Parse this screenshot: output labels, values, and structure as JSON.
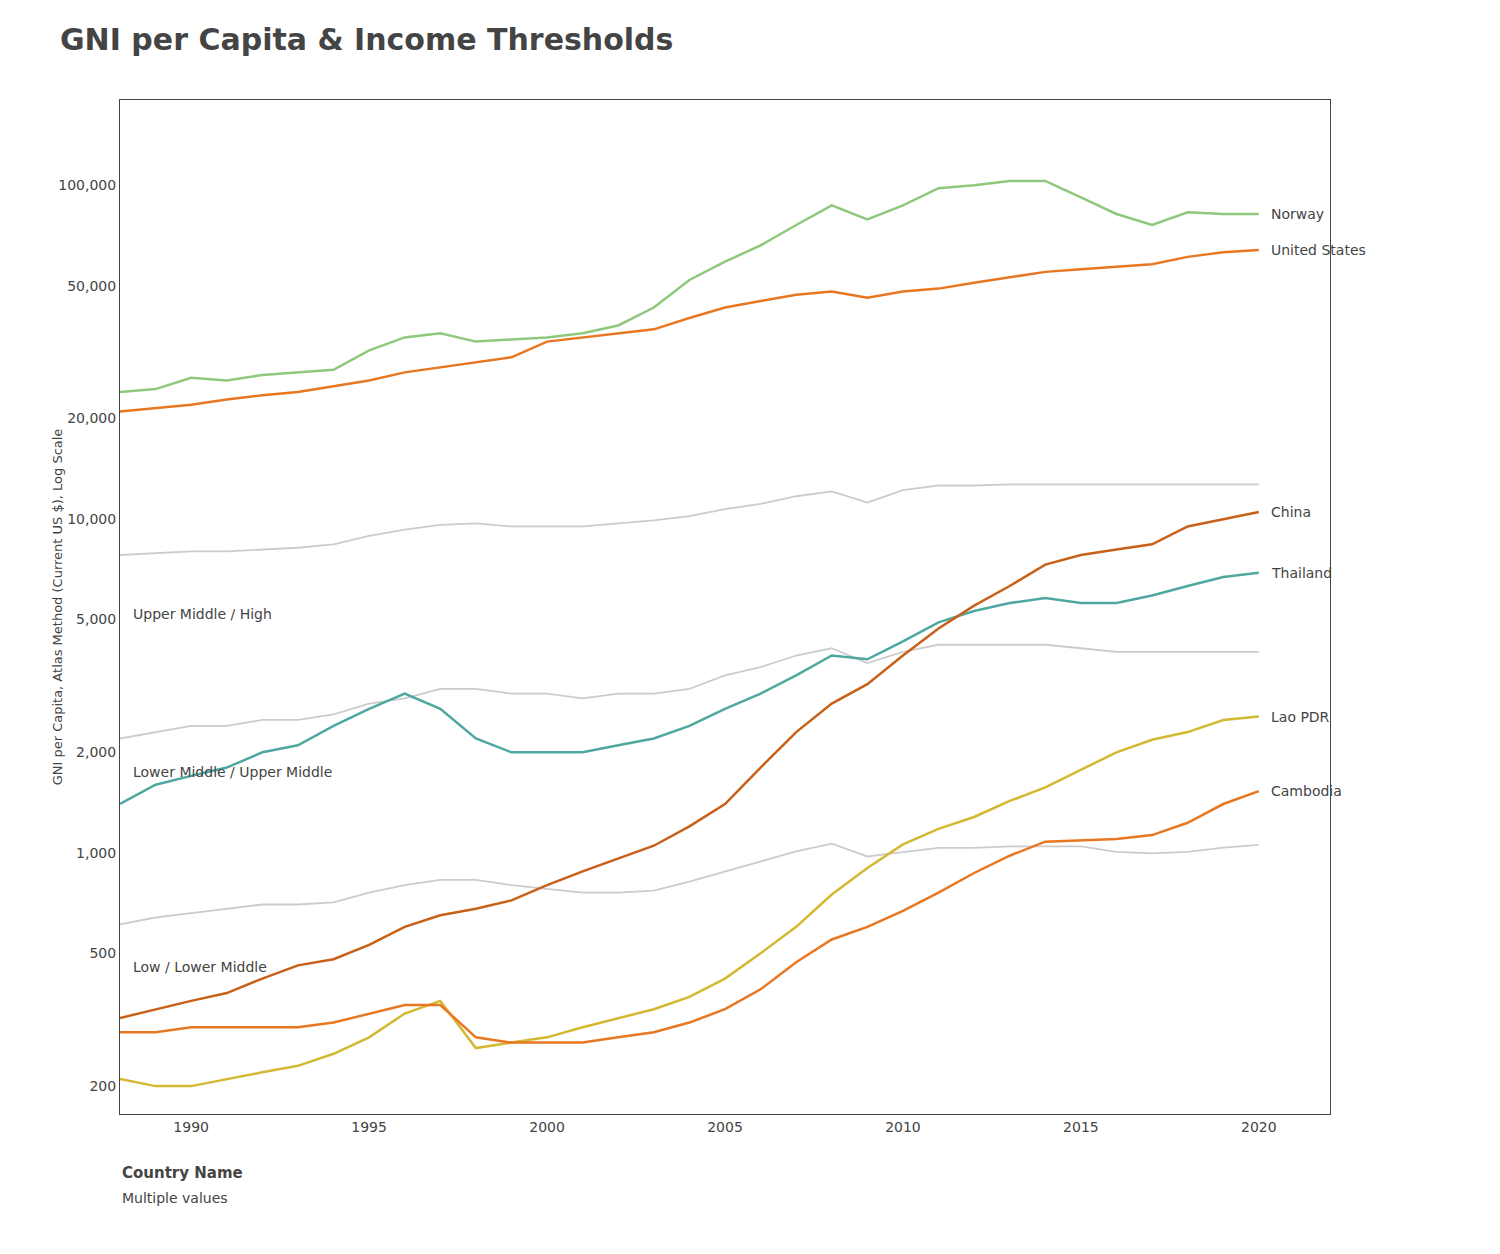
{
  "chart_data": {
    "type": "line",
    "title": "GNI per Capita & Income Thresholds",
    "ylabel": "GNI per Capita, Atlas Method (Current US $), Log Scale",
    "x": [
      1988,
      1989,
      1990,
      1991,
      1992,
      1993,
      1994,
      1995,
      1996,
      1997,
      1998,
      1999,
      2000,
      2001,
      2002,
      2003,
      2004,
      2005,
      2006,
      2007,
      2008,
      2009,
      2010,
      2011,
      2012,
      2013,
      2014,
      2015,
      2016,
      2017,
      2018,
      2019,
      2020
    ],
    "series": [
      {
        "color": "#cccccc",
        "values": [
          7800,
          7900,
          8000,
          8000,
          8100,
          8200,
          8400,
          8900,
          9300,
          9600,
          9700,
          9500,
          9500,
          9500,
          9700,
          9900,
          10200,
          10700,
          11100,
          11700,
          12100,
          11200,
          12200,
          12600,
          12600,
          12700,
          12700,
          12700,
          12700,
          12700,
          12700,
          12700,
          12700
        ]
      },
      {
        "color": "#cccccc",
        "values": [
          2200,
          2300,
          2400,
          2400,
          2500,
          2500,
          2600,
          2800,
          2900,
          3100,
          3100,
          3000,
          3000,
          2900,
          3000,
          3000,
          3100,
          3400,
          3600,
          3900,
          4100,
          3700,
          4000,
          4200,
          4200,
          4200,
          4200,
          4100,
          4000,
          4000,
          4000,
          4000,
          4000
        ]
      },
      {
        "color": "#cccccc",
        "values": [
          610,
          640,
          660,
          680,
          700,
          700,
          710,
          760,
          800,
          830,
          830,
          800,
          780,
          760,
          760,
          770,
          820,
          880,
          940,
          1010,
          1065,
          975,
          1005,
          1035,
          1035,
          1045,
          1045,
          1045,
          1006,
          996,
          1006,
          1036,
          1056
        ]
      },
      {
        "name": "Norway",
        "color": "#8dc87c",
        "values": [
          24000,
          24500,
          26500,
          26000,
          27000,
          27500,
          28000,
          32000,
          35000,
          36000,
          34000,
          34500,
          35000,
          36000,
          38000,
          43000,
          52000,
          59000,
          66000,
          76000,
          87000,
          79000,
          87000,
          98000,
          100000,
          103000,
          103000,
          92000,
          82000,
          76000,
          83000,
          82000,
          82000
        ]
      },
      {
        "name": "United States",
        "color": "#e87722",
        "values": [
          21000,
          21500,
          22000,
          22800,
          23500,
          24000,
          25000,
          26000,
          27500,
          28500,
          29500,
          30500,
          34000,
          35000,
          36000,
          37000,
          40000,
          43000,
          45000,
          47000,
          48000,
          46000,
          48000,
          49000,
          51000,
          53000,
          55000,
          56000,
          57000,
          58000,
          61000,
          63000,
          64000
        ]
      },
      {
        "name": "Thailand",
        "color": "#4ea8a0",
        "values": [
          1400,
          1600,
          1700,
          1800,
          2000,
          2100,
          2400,
          2700,
          3000,
          2700,
          2200,
          2000,
          2000,
          2000,
          2100,
          2200,
          2400,
          2700,
          3000,
          3400,
          3900,
          3800,
          4300,
          4900,
          5300,
          5600,
          5800,
          5600,
          5600,
          5900,
          6300,
          6700,
          6900
        ]
      },
      {
        "name": "China",
        "color": "#c8601a",
        "values": [
          320,
          340,
          360,
          380,
          420,
          460,
          480,
          530,
          600,
          650,
          680,
          720,
          800,
          880,
          960,
          1050,
          1200,
          1400,
          1800,
          2300,
          2800,
          3200,
          3900,
          4700,
          5500,
          6300,
          7300,
          7800,
          8100,
          8400,
          9500,
          10000,
          10500
        ]
      },
      {
        "name": "Lao PDR",
        "color": "#d4b832",
        "values": [
          210,
          200,
          200,
          210,
          220,
          230,
          250,
          280,
          330,
          360,
          260,
          270,
          280,
          300,
          320,
          340,
          370,
          420,
          500,
          600,
          750,
          900,
          1060,
          1180,
          1280,
          1430,
          1570,
          1770,
          2000,
          2180,
          2300,
          2500,
          2560
        ]
      },
      {
        "name": "Cambodia",
        "color": "#e87722",
        "values": [
          290,
          290,
          300,
          300,
          300,
          300,
          310,
          330,
          350,
          350,
          280,
          270,
          270,
          270,
          280,
          290,
          310,
          340,
          390,
          470,
          550,
          600,
          670,
          760,
          870,
          980,
          1080,
          1090,
          1100,
          1130,
          1230,
          1400,
          1530
        ]
      }
    ],
    "annotations": [
      {
        "text": "Upper Middle / High",
        "x": 1988.3,
        "y": 5200
      },
      {
        "text": "Lower Middle / Upper Middle",
        "x": 1988.3,
        "y": 1750
      },
      {
        "text": "Low / Lower Middle",
        "x": 1988.3,
        "y": 455
      },
      {
        "text": "Country Name"
      },
      {
        "text": "Multiple values"
      }
    ],
    "log": "y",
    "grid": false,
    "xlim": [
      1988,
      2022
    ],
    "xticks": [
      1990,
      1995,
      2000,
      2005,
      2010,
      2015,
      2020
    ],
    "ylim": [
      165,
      180000
    ],
    "yticks": [
      200,
      500,
      {
        "value": 1000,
        "label": "1,000"
      },
      {
        "value": 2000,
        "label": "2,000"
      },
      {
        "value": 5000,
        "label": "5,000"
      },
      {
        "value": 10000,
        "label": "10,000"
      },
      {
        "value": 20000,
        "label": "20,000"
      },
      {
        "value": 50000,
        "label": "50,000"
      },
      {
        "value": 100000,
        "label": "100,000"
      }
    ]
  }
}
